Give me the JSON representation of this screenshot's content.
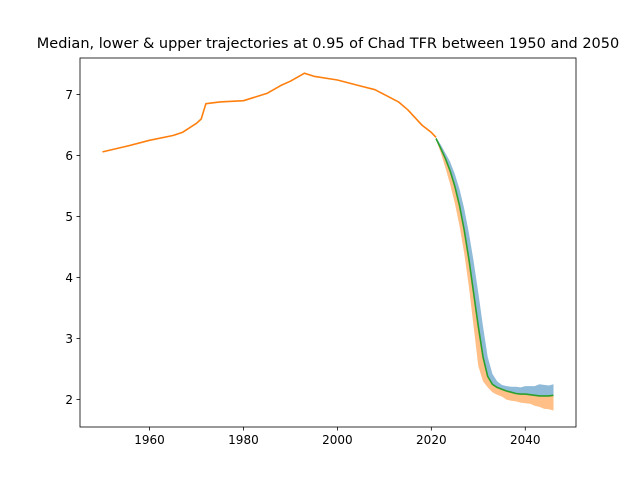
{
  "chart_data": {
    "type": "line",
    "title": "Median, lower & upper trajectories at 0.95 of Chad TFR between 1950 and 2050",
    "xlabel": "",
    "ylabel": "",
    "xlim": [
      1945.2,
      2050.8
    ],
    "ylim": [
      1.55,
      7.6
    ],
    "xticks": [
      1960,
      1980,
      2000,
      2020,
      2040
    ],
    "yticks": [
      2,
      3,
      4,
      5,
      6,
      7
    ],
    "grid": false,
    "legend": "none",
    "colors": {
      "historical": "#ff7f0e",
      "median": "#2ca02c",
      "upper_band": "#1f77b4",
      "lower_band": "#ff7f0e"
    },
    "historical": {
      "x": [
        1950,
        1955,
        1960,
        1965,
        1967,
        1970,
        1971,
        1972,
        1975,
        1980,
        1985,
        1988,
        1990,
        1993,
        1995,
        2000,
        2005,
        2008,
        2010,
        2013,
        2015,
        2018,
        2020,
        2021
      ],
      "y": [
        6.06,
        6.15,
        6.25,
        6.33,
        6.38,
        6.53,
        6.6,
        6.85,
        6.88,
        6.9,
        7.02,
        7.15,
        7.22,
        7.35,
        7.3,
        7.24,
        7.14,
        7.08,
        7.0,
        6.88,
        6.75,
        6.5,
        6.38,
        6.3
      ]
    },
    "projection": {
      "x": [
        2021,
        2022,
        2023,
        2024,
        2025,
        2026,
        2027,
        2028,
        2029,
        2030,
        2031,
        2032,
        2033,
        2034,
        2035,
        2036,
        2037,
        2038,
        2039,
        2040,
        2041,
        2042,
        2043,
        2044,
        2045,
        2046
      ],
      "median": [
        6.28,
        6.12,
        5.95,
        5.75,
        5.5,
        5.18,
        4.78,
        4.3,
        3.75,
        3.2,
        2.7,
        2.38,
        2.25,
        2.2,
        2.17,
        2.14,
        2.12,
        2.1,
        2.09,
        2.09,
        2.08,
        2.07,
        2.06,
        2.06,
        2.06,
        2.07
      ],
      "upper": [
        6.3,
        6.18,
        6.04,
        5.9,
        5.7,
        5.45,
        5.13,
        4.73,
        4.27,
        3.75,
        3.2,
        2.7,
        2.42,
        2.3,
        2.24,
        2.22,
        2.21,
        2.21,
        2.2,
        2.22,
        2.22,
        2.22,
        2.25,
        2.24,
        2.23,
        2.25
      ],
      "lower": [
        6.26,
        6.05,
        5.8,
        5.53,
        5.22,
        4.85,
        4.4,
        3.85,
        3.2,
        2.55,
        2.3,
        2.2,
        2.12,
        2.08,
        2.05,
        2.0,
        1.98,
        1.97,
        1.95,
        1.94,
        1.93,
        1.9,
        1.88,
        1.85,
        1.84,
        1.82
      ]
    }
  }
}
